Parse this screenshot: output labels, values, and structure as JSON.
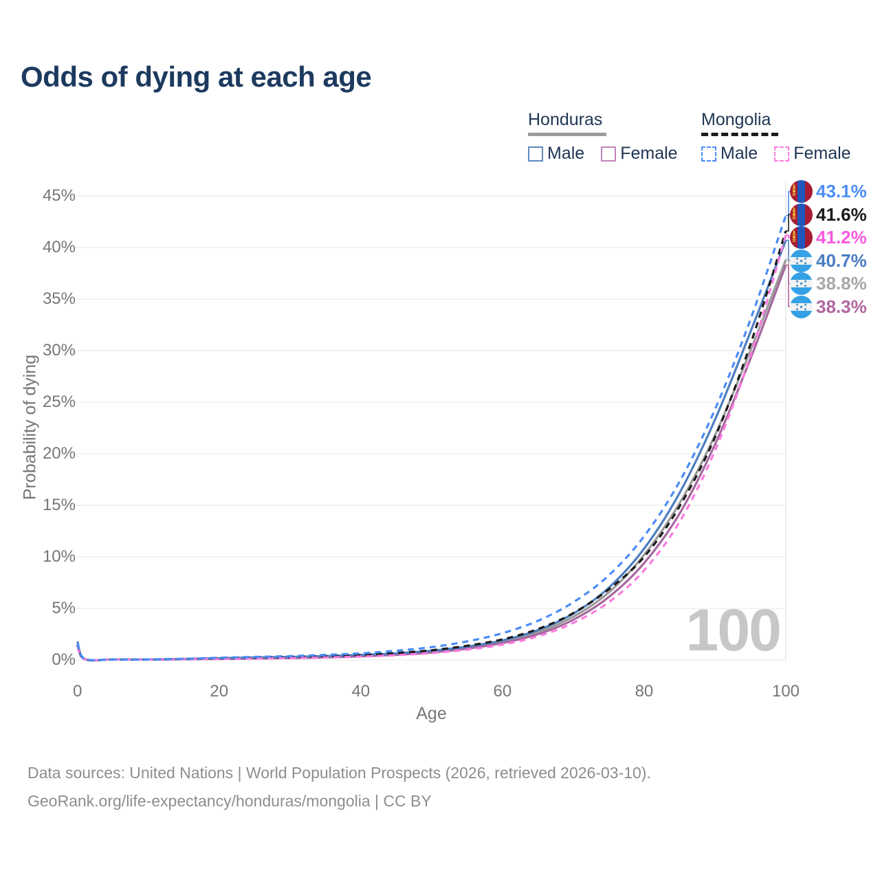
{
  "title": "Odds of dying at each age",
  "legend": {
    "groups": [
      {
        "country": "Honduras",
        "line_style": "solid",
        "swatch_color": "#9b9b9b",
        "items": [
          {
            "label": "Male",
            "color": "#5c89be",
            "style": "solid"
          },
          {
            "label": "Female",
            "color": "#c184ba",
            "style": "solid"
          }
        ]
      },
      {
        "country": "Mongolia",
        "line_style": "dashed",
        "swatch_color": "#1c1c1c",
        "items": [
          {
            "label": "Male",
            "color": "#4a8df6",
            "style": "dashed"
          },
          {
            "label": "Female",
            "color": "#fb7ce1",
            "style": "dashed"
          }
        ]
      }
    ]
  },
  "chart_data": {
    "type": "line",
    "title": "Odds of dying at each age",
    "xlabel": "Age",
    "ylabel": "Probability of dying",
    "xlim": [
      0,
      100
    ],
    "ylim": [
      0,
      45
    ],
    "grid": "horizontal",
    "legend_position": "top-right",
    "watermark": "100",
    "x_ticks": [
      {
        "value": 0,
        "label": "0"
      },
      {
        "value": 20,
        "label": "20"
      },
      {
        "value": 40,
        "label": "40"
      },
      {
        "value": 60,
        "label": "60"
      },
      {
        "value": 80,
        "label": "80"
      },
      {
        "value": 100,
        "label": "100"
      }
    ],
    "y_ticks": [
      {
        "value": 0,
        "label": "0%"
      },
      {
        "value": 5,
        "label": "5%"
      },
      {
        "value": 10,
        "label": "10%"
      },
      {
        "value": 15,
        "label": "15%"
      },
      {
        "value": 20,
        "label": "20%"
      },
      {
        "value": 25,
        "label": "25%"
      },
      {
        "value": 30,
        "label": "30%"
      },
      {
        "value": 35,
        "label": "35%"
      },
      {
        "value": 40,
        "label": "40%"
      },
      {
        "value": 45,
        "label": "45%"
      }
    ],
    "ages": [
      0,
      1,
      5,
      10,
      15,
      20,
      25,
      30,
      35,
      40,
      45,
      50,
      55,
      60,
      65,
      70,
      75,
      80,
      85,
      90,
      95,
      100
    ],
    "series": [
      {
        "name": "Honduras Total",
        "country": "Honduras",
        "sex": "Total",
        "flag": "honduras",
        "color": "#9a9a9a",
        "label_color": "#a8a8a8",
        "dash": false,
        "end_label": "38.8%",
        "values": [
          1.6,
          0.09,
          0.05,
          0.05,
          0.09,
          0.14,
          0.2,
          0.24,
          0.32,
          0.43,
          0.58,
          0.82,
          1.2,
          1.78,
          2.7,
          4.2,
          6.55,
          10.2,
          15.2,
          21.8,
          30.0,
          38.8
        ]
      },
      {
        "name": "Honduras Female",
        "country": "Honduras",
        "sex": "Female",
        "flag": "honduras",
        "color": "#a5689f",
        "label_color": "#b1679f",
        "dash": false,
        "end_label": "38.3%",
        "values": [
          1.4,
          0.08,
          0.04,
          0.04,
          0.07,
          0.1,
          0.14,
          0.18,
          0.25,
          0.35,
          0.5,
          0.72,
          1.1,
          1.65,
          2.5,
          3.9,
          6.1,
          9.4,
          14.2,
          20.9,
          29.2,
          38.3
        ]
      },
      {
        "name": "Honduras Male",
        "country": "Honduras",
        "sex": "Male",
        "flag": "honduras",
        "color": "#4d7ec0",
        "label_color": "#4a7cc2",
        "dash": false,
        "end_label": "40.7%",
        "values": [
          1.8,
          0.1,
          0.05,
          0.05,
          0.1,
          0.18,
          0.25,
          0.3,
          0.38,
          0.5,
          0.65,
          0.9,
          1.3,
          1.9,
          2.9,
          4.5,
          7.0,
          10.8,
          16.2,
          23.3,
          31.8,
          40.7
        ]
      },
      {
        "name": "Mongolia Total",
        "country": "Mongolia",
        "sex": "Total",
        "flag": "mongolia",
        "color": "#1c1c1c",
        "label_color": "#1a1a1a",
        "dash": true,
        "end_label": "41.6%",
        "values": [
          1.45,
          0.1,
          0.05,
          0.05,
          0.1,
          0.16,
          0.22,
          0.28,
          0.37,
          0.49,
          0.68,
          0.95,
          1.38,
          2.0,
          3.0,
          4.55,
          6.85,
          10.0,
          14.9,
          21.6,
          30.6,
          41.6
        ]
      },
      {
        "name": "Mongolia Female",
        "country": "Mongolia",
        "sex": "Female",
        "flag": "mongolia",
        "color": "#fb7be0",
        "label_color": "#f959df",
        "dash": true,
        "end_label": "41.2%",
        "values": [
          1.3,
          0.09,
          0.04,
          0.04,
          0.08,
          0.11,
          0.14,
          0.18,
          0.24,
          0.33,
          0.47,
          0.68,
          1.0,
          1.5,
          2.3,
          3.6,
          5.6,
          8.7,
          13.4,
          20.3,
          29.5,
          41.2
        ]
      },
      {
        "name": "Mongolia Male",
        "country": "Mongolia",
        "sex": "Male",
        "flag": "mongolia",
        "color": "#4a8cf7",
        "label_color": "#4b8ef8",
        "dash": true,
        "end_label": "43.1%",
        "values": [
          1.6,
          0.12,
          0.06,
          0.06,
          0.12,
          0.22,
          0.3,
          0.38,
          0.5,
          0.65,
          0.9,
          1.25,
          1.8,
          2.6,
          3.8,
          5.6,
          8.2,
          12.0,
          17.3,
          24.3,
          33.0,
          43.1
        ]
      }
    ],
    "flag_colors": {
      "mongolia": {
        "red": "#a81c33",
        "blue": "#2156ba",
        "yellow": "#f2c233"
      },
      "honduras": {
        "blue": "#35a0e5",
        "white": "#f2f2f2",
        "star": "#2e86c8"
      }
    }
  },
  "footer": {
    "line1": "Data sources: United Nations | World Population Prospects (2026, retrieved 2026-03-10).",
    "line2": "GeoRank.org/life-expectancy/honduras/mongolia | CC BY"
  }
}
